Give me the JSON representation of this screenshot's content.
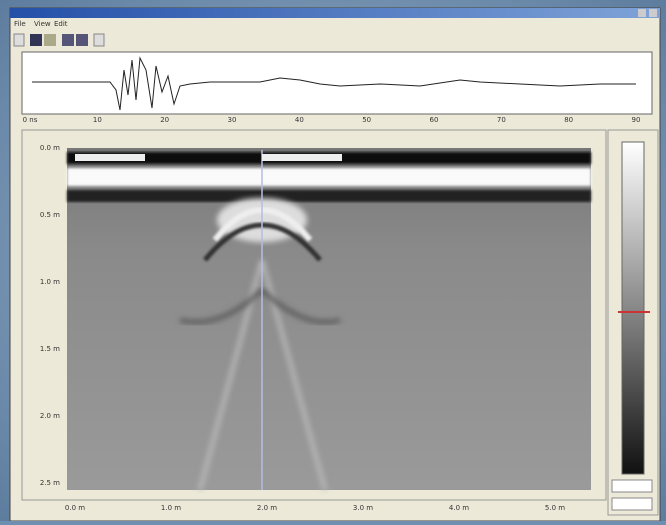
{
  "window": {
    "menu": [
      "File",
      "View",
      "Edit"
    ]
  },
  "trace_axis": [
    "0 ns",
    "10",
    "20",
    "30",
    "40",
    "50",
    "60",
    "70",
    "80",
    "90"
  ],
  "depth_axis": [
    "0.0 m",
    "0.5 m",
    "1.0 m",
    "1.5 m",
    "2.0 m",
    "2.5 m"
  ],
  "position_axis": [
    "0.0 m",
    "1.0 m",
    "2.0 m",
    "3.0 m",
    "4.0 m",
    "5.0 m"
  ]
}
